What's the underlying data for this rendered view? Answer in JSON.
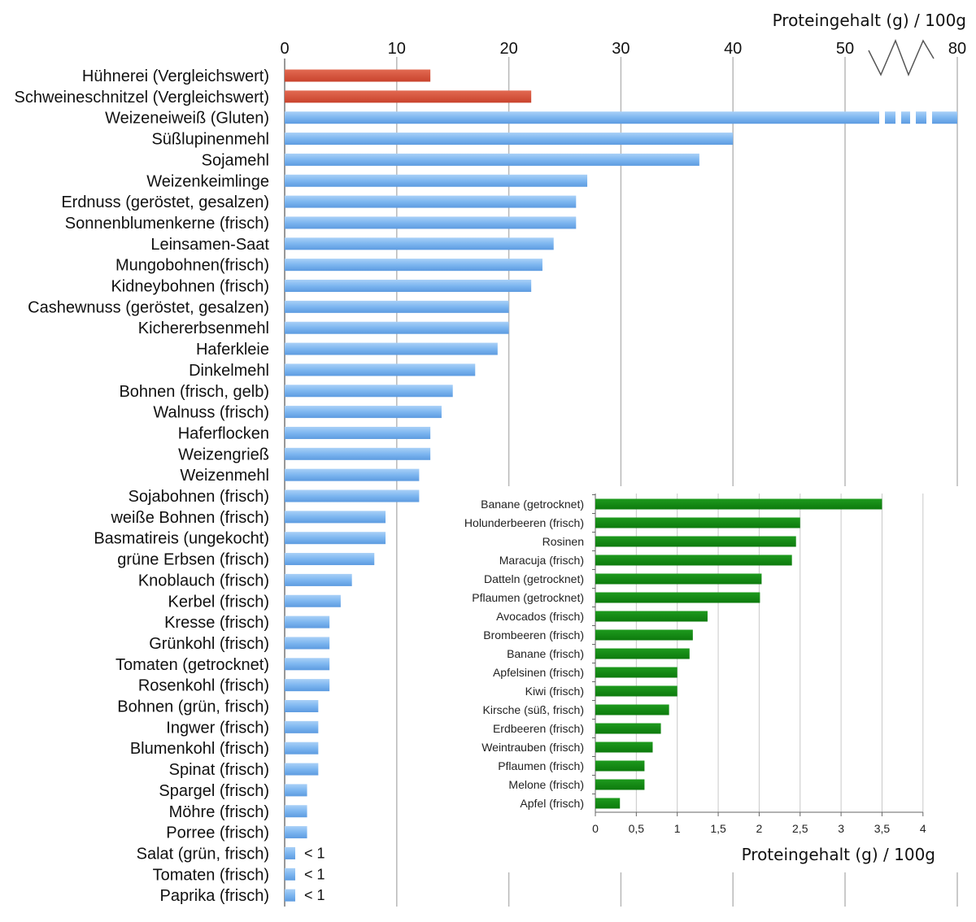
{
  "chart_data": [
    {
      "type": "bar",
      "orientation": "horizontal",
      "xlabel": "Proteingehalt (g) / 100g",
      "xlim": [
        0,
        80
      ],
      "axis_break": "between 50 and 80",
      "xticks": [
        "0",
        "10",
        "20",
        "30",
        "40",
        "50",
        "80"
      ],
      "grid": "vertical",
      "colors": {
        "reference": "#d9503b",
        "default": "#79b4ef"
      },
      "categories": [
        "Hühnerei (Vergleichswert)",
        "Schweineschnitzel (Vergleichswert)",
        "Weizeneiweiß (Gluten)",
        "Süßlupinenmehl",
        "Sojamehl",
        "Weizenkeimlinge",
        "Erdnuss (geröstet, gesalzen)",
        "Sonnenblumenkerne (frisch)",
        "Leinsamen-Saat",
        "Mungobohnen(frisch)",
        "Kidneybohnen (frisch)",
        "Cashewnuss (geröstet, gesalzen)",
        "Kichererbsenmehl",
        "Haferkleie",
        "Dinkelmehl",
        "Bohnen (frisch, gelb)",
        "Walnuss (frisch)",
        "Haferflocken",
        "Weizengrieß",
        "Weizenmehl",
        "Sojabohnen (frisch)",
        "weiße Bohnen (frisch)",
        "Basmatireis (ungekocht)",
        "grüne Erbsen (frisch)",
        "Knoblauch (frisch)",
        "Kerbel (frisch)",
        "Kresse (frisch)",
        "Grünkohl (frisch)",
        "Tomaten (getrocknet)",
        "Rosenkohl (frisch)",
        "Bohnen (grün, frisch)",
        "Ingwer (frisch)",
        "Blumenkohl (frisch)",
        "Spinat (frisch)",
        "Spargel (frisch)",
        "Möhre (frisch)",
        "Porree (frisch)",
        "Salat (grün, frisch)",
        "Tomaten (frisch)",
        "Paprika (frisch)"
      ],
      "values": [
        13,
        22,
        80,
        40,
        37,
        27,
        26,
        26,
        24,
        23,
        22,
        20,
        20,
        19,
        17,
        15,
        14,
        13,
        13,
        12,
        12,
        9,
        9,
        8,
        6,
        5,
        4,
        4,
        4,
        4,
        3,
        3,
        3,
        3,
        2,
        2,
        2,
        1,
        1,
        1
      ],
      "reference_categories": [
        "Hühnerei (Vergleichswert)",
        "Schweineschnitzel (Vergleichswert)"
      ],
      "annotations": [
        "< 1",
        "< 1",
        "< 1"
      ]
    },
    {
      "type": "bar",
      "orientation": "horizontal",
      "xlabel": "Proteingehalt (g) / 100g",
      "xlim": [
        0,
        4
      ],
      "xticks": [
        "0",
        "0,5",
        "1",
        "1,5",
        "2",
        "2,5",
        "3",
        "3,5",
        "4"
      ],
      "grid": "vertical",
      "color": "#128a12",
      "categories": [
        "Banane (getrocknet)",
        "Holunderbeeren (frisch)",
        "Rosinen",
        "Maracuja (frisch)",
        "Datteln (getrocknet)",
        "Pflaumen (getrocknet)",
        "Avocados (frisch)",
        "Brombeeren (frisch)",
        "Banane (frisch)",
        "Apfelsinen (frisch)",
        "Kiwi (frisch)",
        "Kirsche (süß, frisch)",
        "Erdbeeren (frisch)",
        "Weintrauben (frisch)",
        "Pflaumen (frisch)",
        "Melone (frisch)",
        "Apfel (frisch)"
      ],
      "values": [
        3.5,
        2.5,
        2.45,
        2.4,
        2.03,
        2.01,
        1.37,
        1.19,
        1.15,
        1.0,
        1.0,
        0.9,
        0.8,
        0.7,
        0.6,
        0.6,
        0.3
      ]
    }
  ]
}
